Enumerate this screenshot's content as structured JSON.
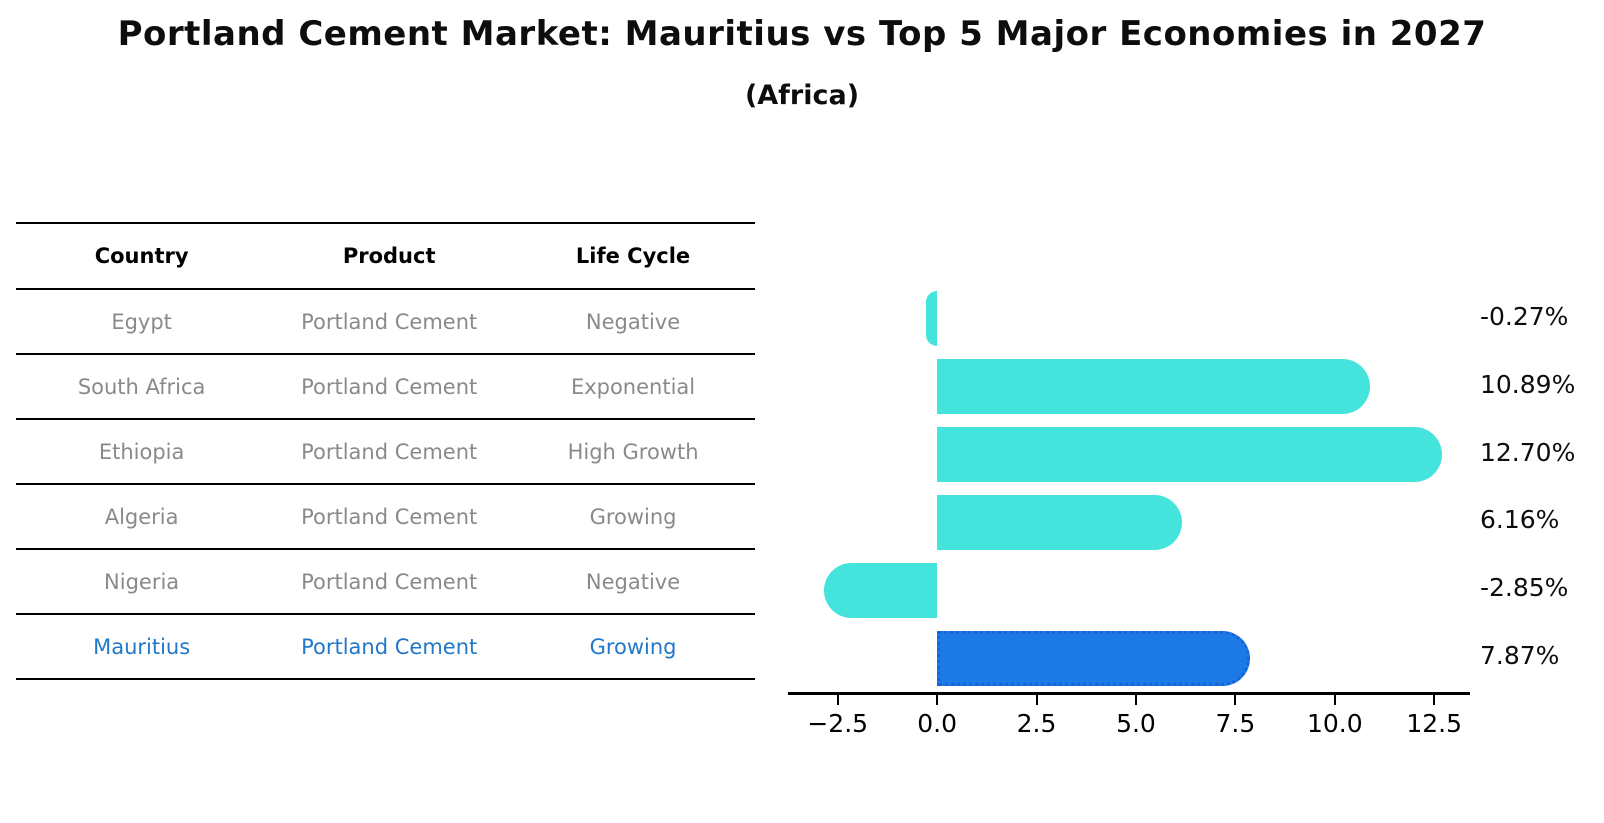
{
  "title": "Portland Cement Market: Mauritius vs Top 5 Major Economies in 2027",
  "subtitle": "(Africa)",
  "table": {
    "headers": [
      "Country",
      "Product",
      "Life Cycle"
    ],
    "rows": [
      {
        "country": "Egypt",
        "product": "Portland Cement",
        "life_cycle": "Negative",
        "highlight": false
      },
      {
        "country": "South Africa",
        "product": "Portland Cement",
        "life_cycle": "Exponential",
        "highlight": false
      },
      {
        "country": "Ethiopia",
        "product": "Portland Cement",
        "life_cycle": "High Growth",
        "highlight": false
      },
      {
        "country": "Algeria",
        "product": "Portland Cement",
        "life_cycle": "Growing",
        "highlight": false
      },
      {
        "country": "Nigeria",
        "product": "Portland Cement",
        "life_cycle": "Negative",
        "highlight": false
      },
      {
        "country": "Mauritius",
        "product": "Portland Cement",
        "life_cycle": "Growing",
        "highlight": true
      }
    ]
  },
  "chart_data": {
    "type": "bar",
    "orientation": "horizontal",
    "title": "Portland Cement Market: Mauritius vs Top 5 Major Economies in 2027",
    "subtitle": "(Africa)",
    "categories": [
      "Egypt",
      "South Africa",
      "Ethiopia",
      "Algeria",
      "Nigeria",
      "Mauritius"
    ],
    "values": [
      -0.27,
      10.89,
      12.7,
      6.16,
      -2.85,
      7.87
    ],
    "value_labels": [
      "-0.27%",
      "10.89%",
      "12.70%",
      "6.16%",
      "-2.85%",
      "7.87%"
    ],
    "xlim": [
      -3.75,
      13.4
    ],
    "x_ticks": [
      -2.5,
      0.0,
      2.5,
      5.0,
      7.5,
      10.0,
      12.5
    ],
    "x_tick_labels": [
      "−2.5",
      "0.0",
      "2.5",
      "5.0",
      "7.5",
      "10.0",
      "12.5"
    ],
    "grid": false,
    "legend": false,
    "highlight_index": 5
  },
  "colors": {
    "bar": "#44e3dc",
    "highlight_bar": "#1b7ae5",
    "highlight_bar_border": "#1565d6",
    "table_text": "#8a8a8a",
    "highlight_text": "#2278c8",
    "axis": "#000000"
  }
}
